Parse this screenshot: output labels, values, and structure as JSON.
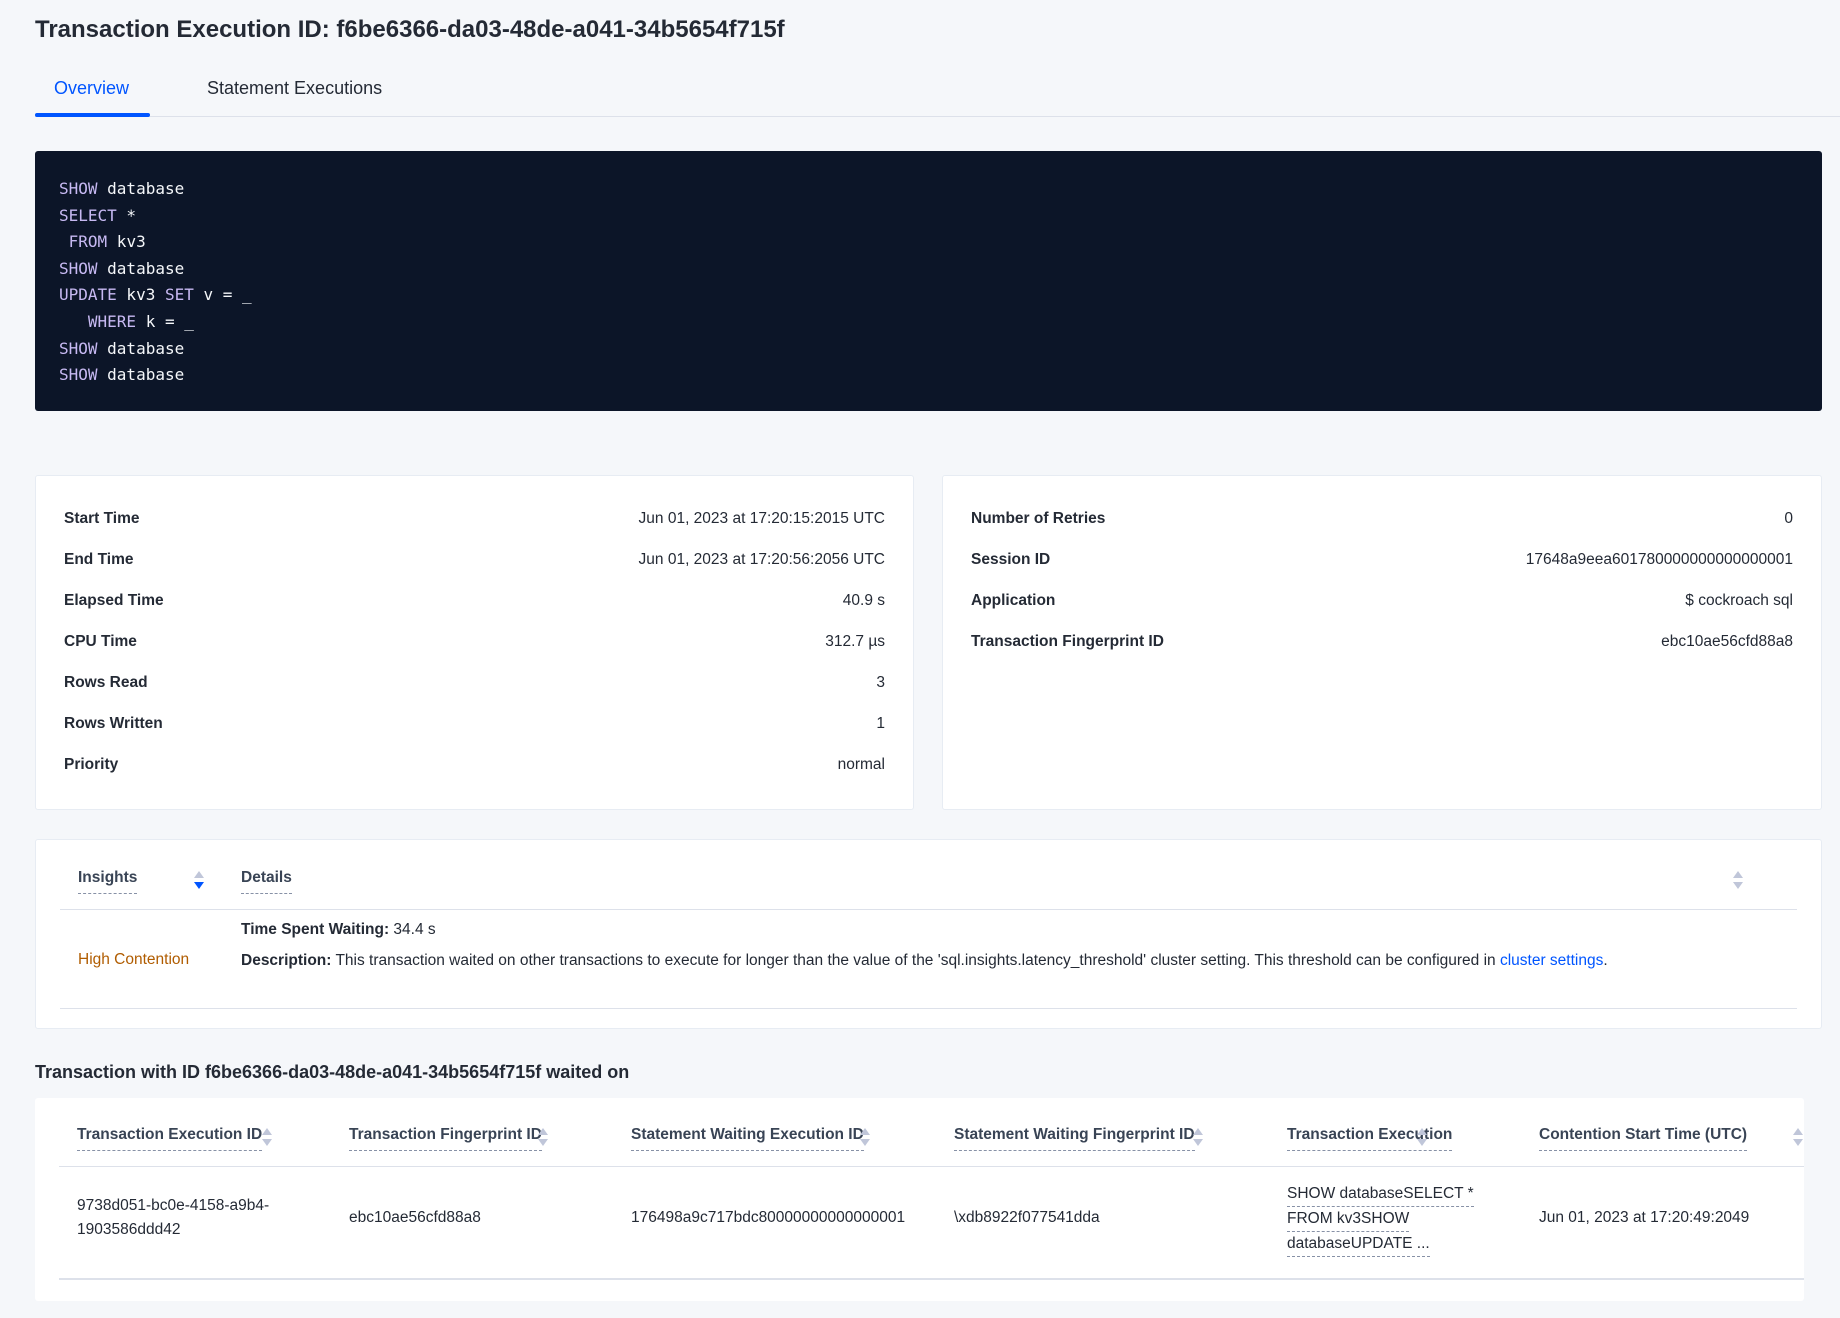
{
  "title": "Transaction Execution ID: f6be6366-da03-48de-a041-34b5654f715f",
  "tabs": [
    {
      "label": "Overview",
      "active": true
    },
    {
      "label": "Statement Executions",
      "active": false
    }
  ],
  "sql_lines": [
    [
      "SHOW",
      " database"
    ],
    [
      "SELECT",
      " *"
    ],
    [
      " FROM",
      " kv3"
    ],
    [
      "SHOW",
      " database"
    ],
    [
      "UPDATE",
      " kv3 ",
      "SET",
      " v = _"
    ],
    [
      "   WHERE",
      " k = _"
    ],
    [
      "SHOW",
      " database"
    ],
    [
      "SHOW",
      " database"
    ]
  ],
  "left_details": [
    {
      "label": "Start Time",
      "value": "Jun 01, 2023 at 17:20:15:2015 UTC"
    },
    {
      "label": "End Time",
      "value": "Jun 01, 2023 at 17:20:56:2056 UTC"
    },
    {
      "label": "Elapsed Time",
      "value": "40.9 s"
    },
    {
      "label": "CPU Time",
      "value": "312.7 µs"
    },
    {
      "label": "Rows Read",
      "value": "3"
    },
    {
      "label": "Rows Written",
      "value": "1"
    },
    {
      "label": "Priority",
      "value": "normal"
    }
  ],
  "right_details": [
    {
      "label": "Number of Retries",
      "value": "0"
    },
    {
      "label": "Session ID",
      "value": "17648a9eea601780000000000000001"
    },
    {
      "label": "Application",
      "value": "$ cockroach sql"
    },
    {
      "label": "Transaction Fingerprint ID",
      "value": "ebc10ae56cfd88a8",
      "link": true
    }
  ],
  "insights": {
    "headers": [
      "Insights",
      "Details"
    ],
    "type": "High Contention",
    "type_color": "#b05c00",
    "time_label": "Time Spent Waiting:",
    "time_value": " 34.4 s",
    "desc_label": "Description:",
    "desc_text": " This transaction waited on other transactions to execute for longer than the value of the 'sql.insights.latency_threshold' cluster setting. This threshold can be configured in ",
    "desc_link": "cluster settings",
    "desc_end": "."
  },
  "waited_heading": "Transaction with ID f6be6366-da03-48de-a041-34b5654f715f waited on",
  "waited_table": {
    "headers": [
      "Transaction Execution ID",
      "Transaction Fingerprint ID",
      "Statement Waiting Execution ID",
      "Statement Waiting Fingerprint ID",
      "Transaction Execution",
      "Contention Start Time (UTC)"
    ],
    "rows": [
      {
        "exec_id_1": "9738d051-bc0e-4158-a9b4-",
        "exec_id_2": "1903586ddd42",
        "fingerprint": "ebc10ae56cfd88a8",
        "stmt_exec_id": "176498a9c717bdc80000000000000001",
        "stmt_fp": "\\xdb8922f077541dda",
        "txn_1": "SHOW databaseSELECT *",
        "txn_2": "FROM kv3SHOW",
        "txn_3": "databaseUPDATE ...",
        "start": "Jun 01, 2023 at 17:20:49:2049"
      }
    ]
  }
}
